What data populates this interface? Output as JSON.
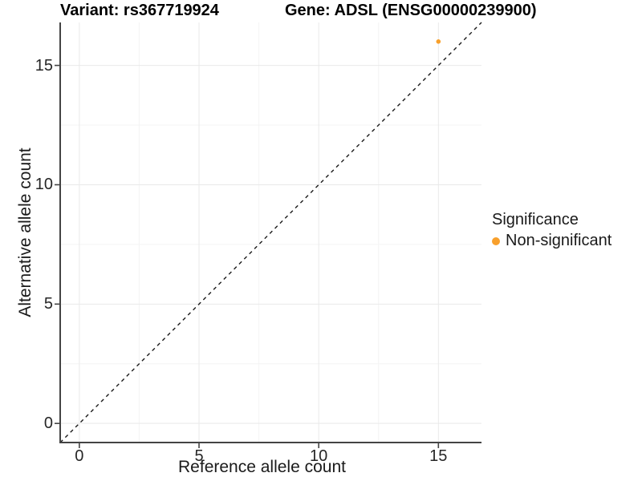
{
  "titles": {
    "variant": "Variant: rs367719924",
    "gene": "Gene: ADSL (ENSG00000239900)"
  },
  "axes": {
    "x_label": "Reference allele count",
    "y_label": "Alternative allele count"
  },
  "legend": {
    "title": "Significance",
    "items": [
      {
        "label": "Non-significant",
        "color": "#F8A02C"
      }
    ]
  },
  "colors": {
    "point": "#F8A02C",
    "axis_line": "#444444",
    "major_grid": "#e9e9e9",
    "minor_grid": "#f4f4f4",
    "reference_line": "#1a1a1a",
    "background": "#ffffff"
  },
  "chart_data": {
    "type": "scatter",
    "title": "Variant: rs367719924 — Gene: ADSL (ENSG00000239900)",
    "xlabel": "Reference allele count",
    "ylabel": "Alternative allele count",
    "xlim": [
      -0.8,
      16.8
    ],
    "ylim": [
      -0.8,
      16.8
    ],
    "x_ticks": [
      0,
      5,
      10,
      15
    ],
    "y_ticks": [
      0,
      5,
      10,
      15
    ],
    "x_minor_ticks": [
      2.5,
      7.5,
      12.5
    ],
    "y_minor_ticks": [
      2.5,
      7.5,
      12.5
    ],
    "grid": true,
    "legend_position": "right",
    "series": [
      {
        "name": "Non-significant",
        "color": "#F8A02C",
        "points": [
          {
            "x": 15,
            "y": 16
          }
        ]
      }
    ],
    "reference_line": {
      "kind": "identity",
      "slope": 1,
      "intercept": 0,
      "style": "dashed"
    }
  }
}
